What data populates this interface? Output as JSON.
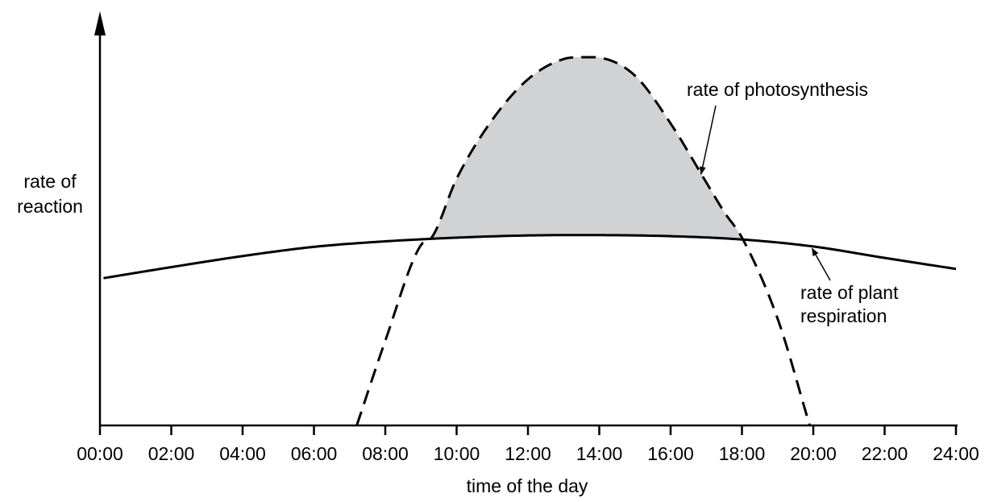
{
  "chart_data": {
    "type": "line",
    "title": "",
    "xlabel": "time of the day",
    "ylabel_lines": [
      "rate of",
      "reaction"
    ],
    "x_unit": "hours",
    "xlim": [
      0,
      24
    ],
    "ylim": [
      0,
      100
    ],
    "x_ticks": [
      0,
      2,
      4,
      6,
      8,
      10,
      12,
      14,
      16,
      18,
      20,
      22,
      24
    ],
    "x_tick_labels": [
      "00:00",
      "02:00",
      "04:00",
      "06:00",
      "08:00",
      "10:00",
      "12:00",
      "14:00",
      "16:00",
      "18:00",
      "20:00",
      "22:00",
      "24:00"
    ],
    "y_ticks": [],
    "grid": false,
    "legend": "none",
    "series": [
      {
        "key": "photosynthesis",
        "style": "dashed",
        "x": [
          7.2,
          8.0,
          9.0,
          9.3,
          10.0,
          11.0,
          12.0,
          13.0,
          13.5,
          13.8,
          14.0,
          15.0,
          16.0,
          17.0,
          17.5,
          18.0,
          19.0,
          19.9
        ],
        "y": [
          0,
          23,
          49,
          51,
          67,
          83,
          94,
          99.5,
          100,
          100,
          99.9,
          95,
          82,
          66,
          58,
          51,
          29,
          0
        ]
      },
      {
        "key": "respiration",
        "style": "solid",
        "x": [
          0.1,
          2,
          4,
          6,
          8,
          10,
          12,
          13.5,
          16,
          18,
          20,
          22,
          24.0
        ],
        "y": [
          40,
          43,
          46,
          48.5,
          50,
          51,
          51.6,
          51.7,
          51.4,
          50.5,
          48.6,
          45.5,
          42.5
        ]
      }
    ],
    "shaded_region": {
      "between": [
        "photosynthesis",
        "respiration"
      ],
      "x_range": [
        9.3,
        18.0
      ],
      "color": "#d1d2d4"
    },
    "annotations": [
      {
        "lines": [
          "rate of photosynthesis"
        ],
        "points_to": "photosynthesis",
        "at_x": 16.9
      },
      {
        "lines": [
          "rate of plant",
          "respiration"
        ],
        "points_to": "respiration",
        "at_x": 19.9
      }
    ]
  }
}
